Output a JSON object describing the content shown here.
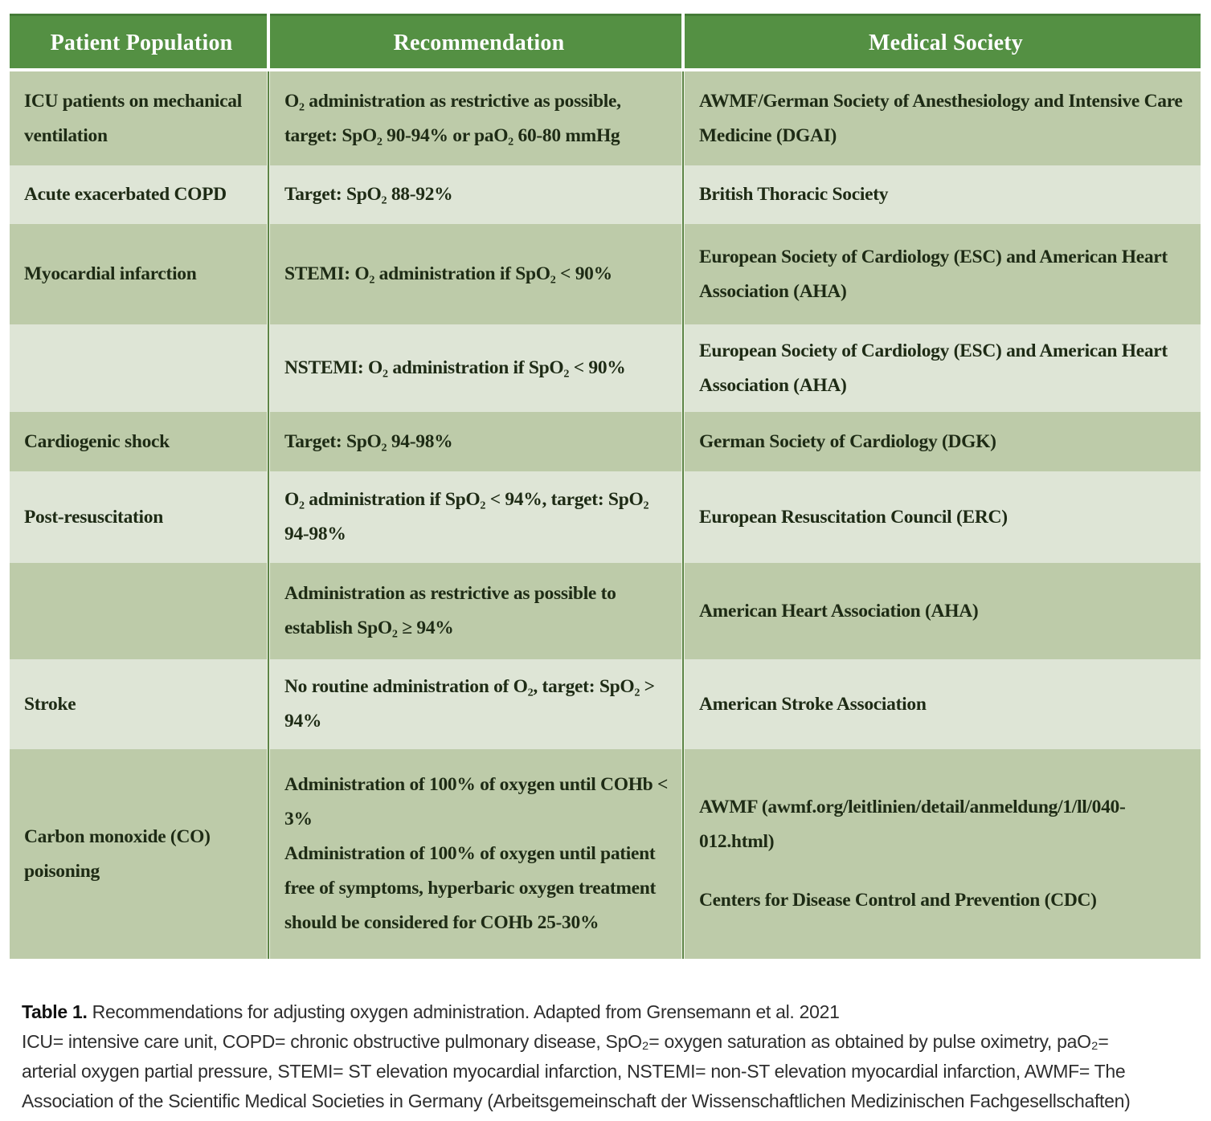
{
  "table": {
    "headers": {
      "population": "Patient Population",
      "recommendation": "Recommendation",
      "society": "Medical Society"
    },
    "rows": [
      {
        "population": "ICU patients on mechanical ventilation",
        "recommendation": "O₂ administration as restrictive as possible, target: SpO₂ 90-94% or paO₂ 60-80 mmHg",
        "society": "AWMF/German Society of Anesthesiology and Intensive Care Medicine (DGAI)"
      },
      {
        "population": "Acute exacerbated COPD",
        "recommendation": "Target: SpO₂ 88-92%",
        "society": "British Thoracic Society"
      },
      {
        "population": "Myocardial infarction",
        "recommendation": "STEMI: O₂ administration if SpO₂ < 90%",
        "society": "European Society of Cardiology (ESC) and American Heart Association (AHA)"
      },
      {
        "population": "",
        "recommendation": "NSTEMI: O₂ administration if SpO₂ < 90%",
        "society": "European Society of Cardiology (ESC) and American Heart Association (AHA)"
      },
      {
        "population": "Cardiogenic shock",
        "recommendation": "Target: SpO₂ 94-98%",
        "society": "German Society of Cardiology (DGK)"
      },
      {
        "population": "Post-resuscitation",
        "recommendation": "O₂ administration if SpO₂ < 94%, target: SpO₂ 94-98%",
        "society": "European Resuscitation Council (ERC)"
      },
      {
        "population": "",
        "recommendation": "Administration as restrictive as possible to establish SpO₂ ≥ 94%",
        "society": "American Heart Association (AHA)"
      },
      {
        "population": "Stroke",
        "recommendation": "No routine administration of O₂, target: SpO₂ > 94%",
        "society": "American Stroke Association"
      },
      {
        "population": "Carbon monoxide (CO) poisoning",
        "recommendation": "Administration of 100% of oxygen until COHb < 3%",
        "recommendation2": "Administration of 100% of oxygen until patient free of symptoms, hyperbaric oxygen treatment should be considered for COHb 25-30%",
        "society": "AWMF (awmf.org/leitlinien/detail/anmeldung/1/ll/040-012.html)",
        "society2": "Centers for Disease Control and Prevention (CDC)"
      }
    ]
  },
  "caption": {
    "label": "Table 1.",
    "title": "Recommendations for adjusting oxygen administration. Adapted from Grensemann et al. 2021",
    "abbreviations": "ICU= intensive care unit, COPD= chronic obstructive pulmonary disease, SpO₂= oxygen saturation as obtained by pulse oximetry, paO₂= arterial oxygen partial pressure, STEMI= ST elevation myocardial infarction, NSTEMI= non-ST elevation myocardial infarction, AWMF= The Association of the Scientific Medical Societies in Germany (Arbeitsgemeinschaft der Wissenschaftlichen Medizinischen Fachgesellschaften)"
  },
  "colors": {
    "header_green": "#549043",
    "row_sage": "#bdcba9",
    "row_light": "#dee5d6",
    "separator_line": "#5d8546",
    "header_text": "#ffffff",
    "body_text": "#1e2b15",
    "caption_rule": "#9b9b9b"
  }
}
